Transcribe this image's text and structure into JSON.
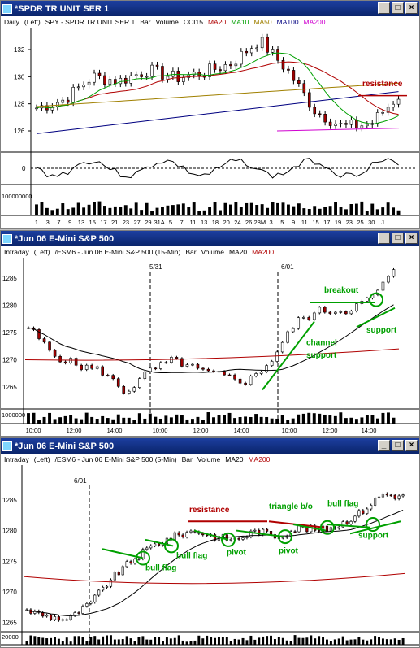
{
  "win1": {
    "title": "*SPDR TR UNIT SER 1",
    "hdr": {
      "a": "Daily",
      "b": "(Left)",
      "c": "SPY - SPDR TR UNIT SER 1",
      "d": "Bar",
      "e": "Volume",
      "f": "CCI15",
      "g": "MA20",
      "h": "MA10",
      "i": "MA50",
      "j": "MA100",
      "k": "MA200"
    },
    "yticks": [
      "132",
      "130",
      "128",
      "126"
    ],
    "ind_tick": "0",
    "vol_tick": "100000000",
    "xticks": [
      "1",
      "3",
      "7",
      "9",
      "13",
      "15",
      "17",
      "21",
      "23",
      "27",
      "29",
      "31A",
      "5",
      "7",
      "11",
      "13",
      "18",
      "20",
      "24",
      "26",
      "28M",
      "3",
      "5",
      "9",
      "11",
      "15",
      "17",
      "19",
      "23",
      "25",
      "30",
      "J"
    ],
    "ann": {
      "resistance": "resistance"
    }
  },
  "win2": {
    "title": "*Jun 06  E-Mini S&P 500",
    "hdr": {
      "a": "Intraday",
      "b": "(Left)",
      "c": "/ESM6 - Jun 06  E-Mini S&P 500 (15-Min)",
      "d": "Bar",
      "e": "Volume",
      "f": "MA20",
      "g": "MA200"
    },
    "yticks": [
      "1285",
      "1280",
      "1275",
      "1270",
      "1265"
    ],
    "vol_tick": "1000000",
    "xticks": [
      "10:00",
      "12:00",
      "14:00",
      "10:00",
      "12:00",
      "14:00",
      "10:00",
      "12:00",
      "14:00"
    ],
    "date1": "5/31",
    "date2": "6/01",
    "ann": {
      "breakout": "breakout",
      "channel": "channel",
      "support1": "support",
      "support2": "support"
    }
  },
  "win3": {
    "title": "*Jun 06  E-Mini S&P 500",
    "hdr": {
      "a": "Intraday",
      "b": "(Left)",
      "c": "/ESM6 - Jun 06  E-Mini S&P 500 (5-Min)",
      "d": "Bar",
      "e": "Volume",
      "f": "MA20",
      "g": "MA200"
    },
    "yticks": [
      "1285",
      "1280",
      "1275",
      "1270",
      "1265"
    ],
    "vol_tick": "20000",
    "xticks": [
      "15:00",
      "15:30",
      "9:30",
      "10:00",
      "10:30",
      "11:00",
      "11:30",
      "12:00",
      "12:30",
      "13:00",
      "13:30",
      "14:00",
      "14:30",
      "15:00",
      "15:30"
    ],
    "date1": "6/01",
    "ann": {
      "resistance": "resistance",
      "triangle": "triangle b/o",
      "bullflag1": "bull flag",
      "bullflag2": "bull flag",
      "bullflag3": "bull flag",
      "pivot1": "pivot",
      "pivot2": "pivot",
      "support": "support"
    }
  },
  "colors": {
    "green": "#00a000",
    "red": "#b00000",
    "magenta": "#d000d0",
    "olive": "#a08000",
    "navy": "#000080"
  }
}
